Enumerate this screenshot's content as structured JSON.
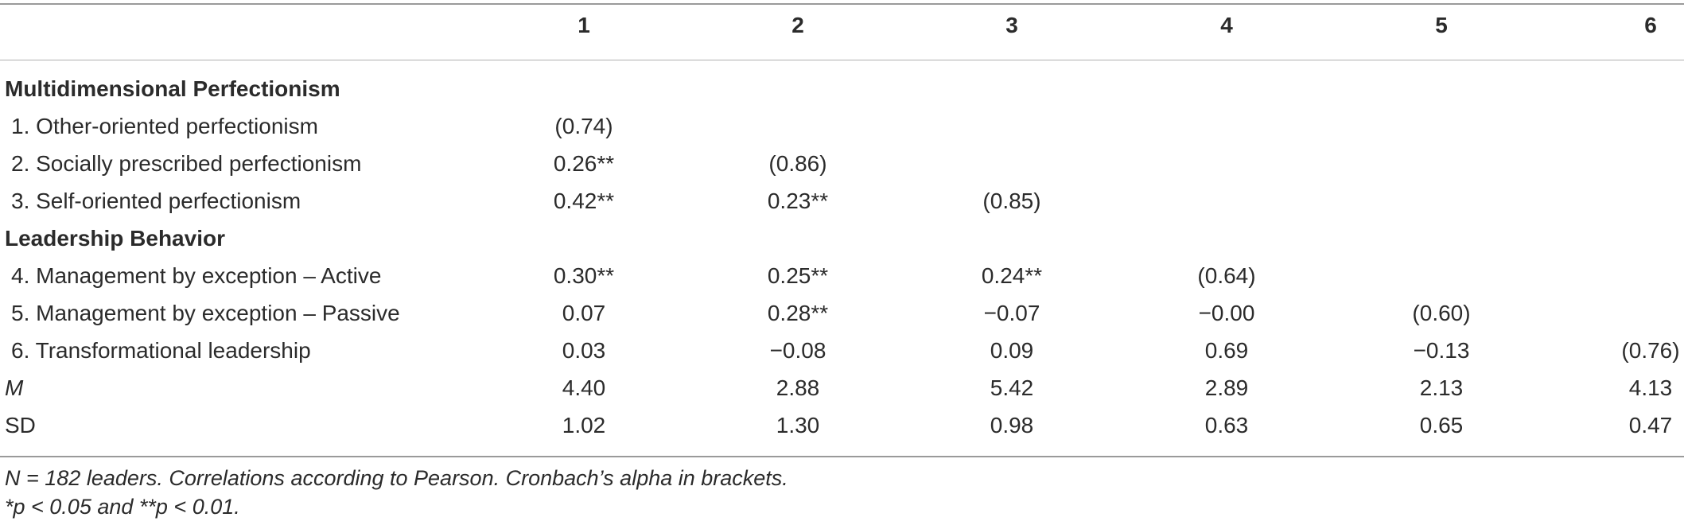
{
  "table": {
    "columns": [
      "1",
      "2",
      "3",
      "4",
      "5",
      "6"
    ],
    "sections": {
      "perfectionism": "Multidimensional Perfectionism",
      "leadership": "Leadership Behavior"
    },
    "rows": [
      {
        "label": "1. Other-oriented perfectionism",
        "values": [
          "(0.74)",
          "",
          "",
          "",
          "",
          ""
        ]
      },
      {
        "label": "2. Socially prescribed perfectionism",
        "values": [
          "0.26**",
          "(0.86)",
          "",
          "",
          "",
          ""
        ]
      },
      {
        "label": "3. Self-oriented perfectionism",
        "values": [
          "0.42**",
          "0.23**",
          "(0.85)",
          "",
          "",
          ""
        ]
      },
      {
        "label": "4. Management by exception – Active",
        "values": [
          "0.30**",
          "0.25**",
          "0.24**",
          "(0.64)",
          "",
          ""
        ]
      },
      {
        "label": "5. Management by exception – Passive",
        "values": [
          "0.07",
          "0.28**",
          "−0.07",
          "−0.00",
          "(0.60)",
          ""
        ]
      },
      {
        "label": "6. Transformational leadership",
        "values": [
          "0.03",
          "−0.08",
          "0.09",
          "0.69",
          "−0.13",
          "(0.76)"
        ]
      },
      {
        "label": "M",
        "values": [
          "4.40",
          "2.88",
          "5.42",
          "2.89",
          "2.13",
          "4.13"
        ]
      },
      {
        "label": "SD",
        "values": [
          "1.02",
          "1.30",
          "0.98",
          "0.63",
          "0.65",
          "0.47"
        ]
      }
    ],
    "notes": [
      "N = 182 leaders. Correlations according to Pearson. Cronbach’s alpha in brackets.",
      "*p < 0.05 and **p < 0.01."
    ]
  }
}
